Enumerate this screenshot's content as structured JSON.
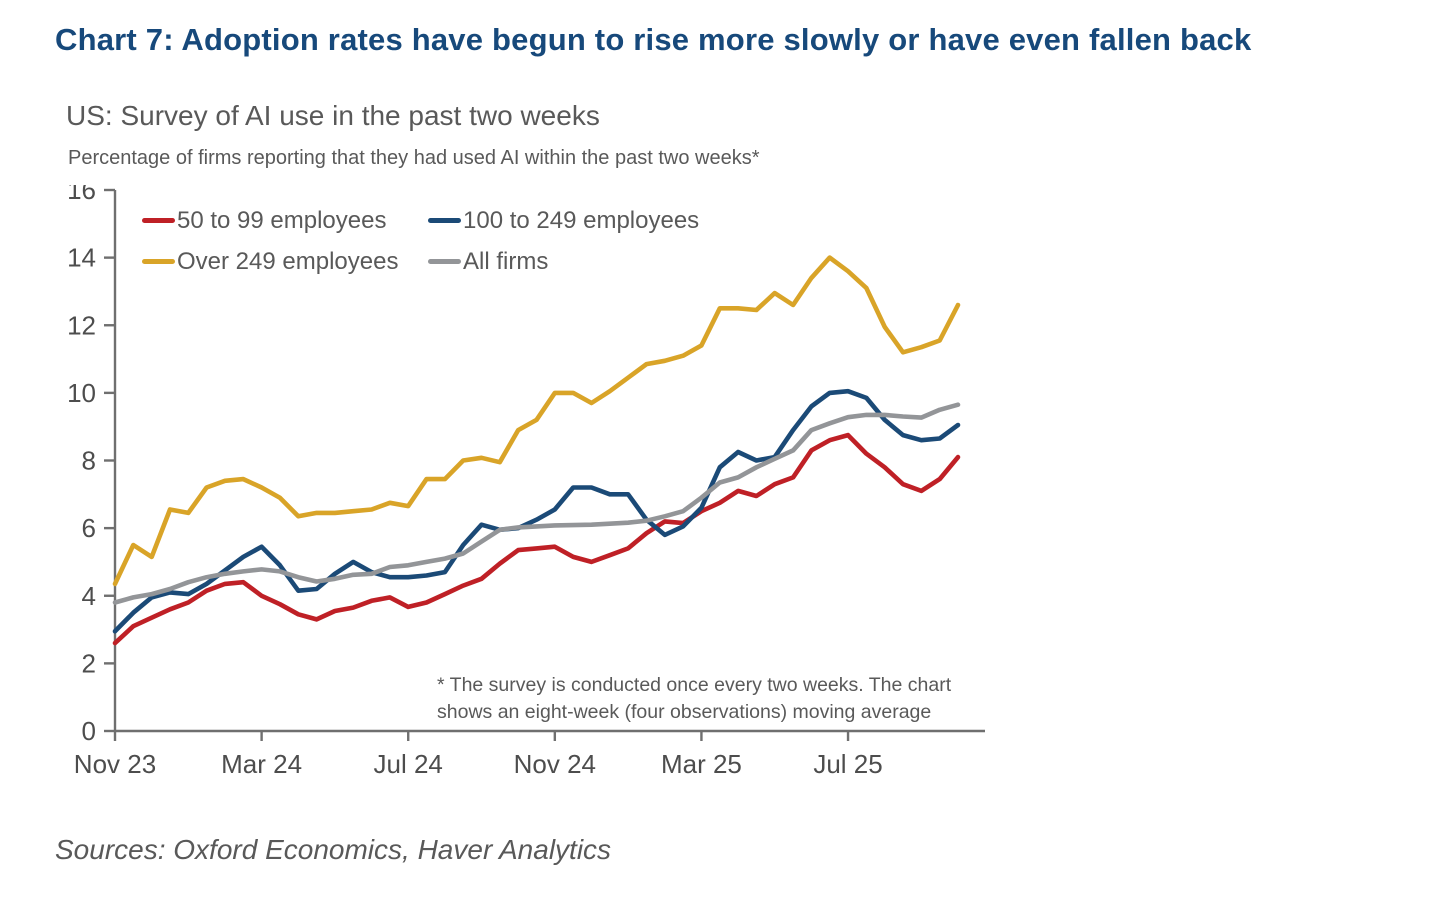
{
  "header": {
    "title": "Chart 7: Adoption rates have begun to rise more slowly or have even fallen back"
  },
  "chart": {
    "subtitle": "US: Survey of AI use in the past two weeks",
    "unit_label": "Percentage of firms reporting that they had used AI within the past two weeks*",
    "footnote_line1": "* The survey is conducted once every two weeks. The chart",
    "footnote_line2": "shows an eight-week (four observations) moving average"
  },
  "footer": {
    "sources": "Sources: Oxford Economics, Haver Analytics"
  },
  "chart_data": {
    "type": "line",
    "title": "US: Survey of AI use in the past two weeks",
    "ylabel": "Percentage of firms reporting that they had used AI within the past two weeks*",
    "x_description": "Biweekly survey observations, Nov 2023 to Oct 2025, eight-week (four observations) moving average",
    "x_tick_labels": [
      "Nov 23",
      "Mar 24",
      "Jul 24",
      "Nov 24",
      "Mar 25",
      "Jul 25"
    ],
    "x_tick_indices": [
      0,
      8,
      16,
      24,
      32,
      40
    ],
    "ylim": [
      0,
      16
    ],
    "y_ticks": [
      0,
      2,
      4,
      6,
      8,
      10,
      12,
      14,
      16
    ],
    "grid": false,
    "legend_position": "top-left-inside",
    "axis_color": "#6f6f6f",
    "tick_label_color": "#4d4d4d",
    "series": [
      {
        "name": "50 to 99 employees",
        "color": "#bf2026",
        "values": [
          2.6,
          3.1,
          3.35,
          3.6,
          3.8,
          4.15,
          4.35,
          4.4,
          4.0,
          3.75,
          3.45,
          3.3,
          3.55,
          3.65,
          3.85,
          3.95,
          3.67,
          3.8,
          4.05,
          4.3,
          4.5,
          4.95,
          5.35,
          5.4,
          5.45,
          5.15,
          5.0,
          5.2,
          5.4,
          5.85,
          6.2,
          6.15,
          6.5,
          6.75,
          7.1,
          6.95,
          7.3,
          7.5,
          8.3,
          8.6,
          8.75,
          8.2,
          7.8,
          7.3,
          7.1,
          7.45,
          8.1
        ]
      },
      {
        "name": "100 to 249 employees",
        "color": "#1b4a77",
        "values": [
          2.95,
          3.5,
          3.95,
          4.1,
          4.05,
          4.35,
          4.75,
          5.15,
          5.45,
          4.9,
          4.15,
          4.2,
          4.65,
          5.0,
          4.7,
          4.55,
          4.55,
          4.6,
          4.7,
          5.5,
          6.1,
          5.95,
          6.0,
          6.25,
          6.55,
          7.2,
          7.2,
          7.0,
          7.0,
          6.25,
          5.8,
          6.05,
          6.6,
          7.8,
          8.25,
          8.0,
          8.1,
          8.9,
          9.6,
          10.0,
          10.05,
          9.85,
          9.2,
          8.75,
          8.6,
          8.65,
          9.05
        ]
      },
      {
        "name": "Over 249 employees",
        "color": "#d9a428",
        "values": [
          4.35,
          5.5,
          5.15,
          6.55,
          6.45,
          7.2,
          7.4,
          7.45,
          7.2,
          6.9,
          6.35,
          6.45,
          6.45,
          6.5,
          6.55,
          6.75,
          6.65,
          7.45,
          7.45,
          8.0,
          8.08,
          7.95,
          8.9,
          9.2,
          10.0,
          10.0,
          9.7,
          10.05,
          10.45,
          10.85,
          10.95,
          11.1,
          11.4,
          12.5,
          12.5,
          12.45,
          12.95,
          12.6,
          13.4,
          14.0,
          13.6,
          13.1,
          11.95,
          11.2,
          11.35,
          11.55,
          12.6
        ]
      },
      {
        "name": "All firms",
        "color": "#939598",
        "values": [
          3.8,
          3.95,
          4.05,
          4.2,
          4.4,
          4.55,
          4.65,
          4.72,
          4.78,
          4.72,
          4.55,
          4.42,
          4.5,
          4.62,
          4.65,
          4.85,
          4.9,
          5.0,
          5.1,
          5.25,
          5.6,
          5.95,
          6.02,
          6.05,
          6.08,
          6.09,
          6.1,
          6.13,
          6.16,
          6.22,
          6.35,
          6.5,
          6.9,
          7.35,
          7.5,
          7.8,
          8.05,
          8.3,
          8.9,
          9.1,
          9.28,
          9.35,
          9.35,
          9.3,
          9.27,
          9.5,
          9.65
        ]
      }
    ]
  }
}
